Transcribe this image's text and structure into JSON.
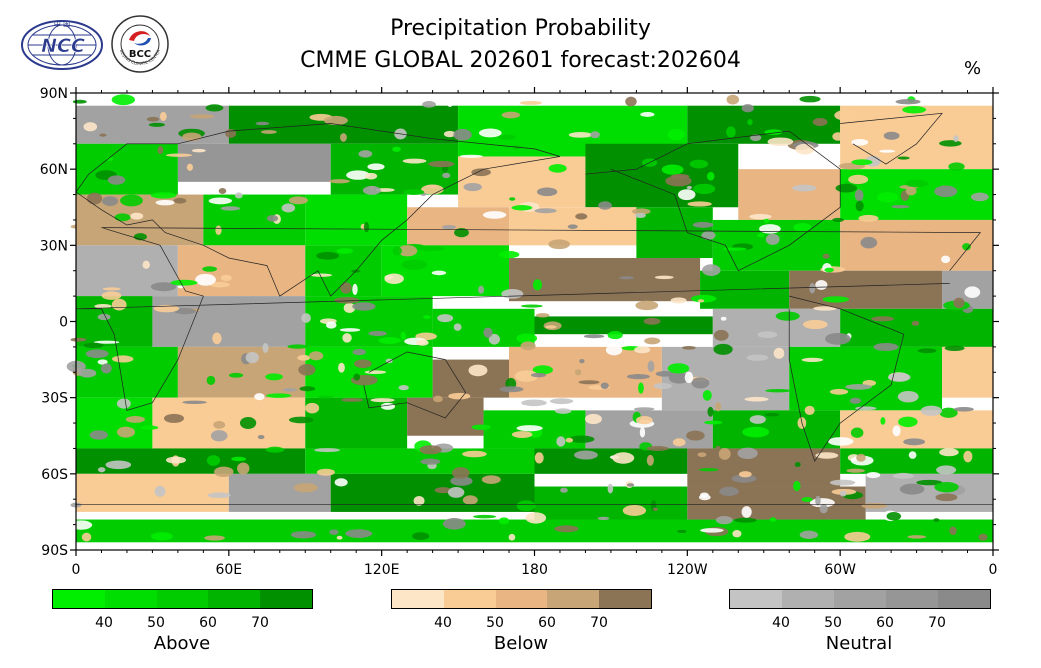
{
  "header": {
    "title_line1": "Precipitation Probability",
    "title_line2": "CMME GLOBAL 202601 forecast:202604",
    "unit": "%"
  },
  "logos": {
    "ncc": {
      "text": "NCC",
      "top_text": "中 国"
    },
    "bcc": {
      "text": "BCC",
      "ring_text": "BEIJING CLIMATE CENTER"
    }
  },
  "map": {
    "lat_labels": [
      "90N",
      "60N",
      "30N",
      "0",
      "30S",
      "60S",
      "90S"
    ],
    "lon_labels": [
      "0",
      "60E",
      "120E",
      "180",
      "120W",
      "60W",
      "0"
    ]
  },
  "legend": {
    "above": {
      "name": "Above",
      "ticks": [
        "40",
        "50",
        "60",
        "70"
      ],
      "colors": [
        "#00ee00",
        "#00dd00",
        "#00cc00",
        "#00b400",
        "#009000"
      ]
    },
    "below": {
      "name": "Below",
      "ticks": [
        "40",
        "50",
        "60",
        "70"
      ],
      "colors": [
        "#fde6c8",
        "#f9cc96",
        "#e8b583",
        "#c8a576",
        "#8b7355"
      ]
    },
    "neutral": {
      "name": "Neutral",
      "ticks": [
        "40",
        "50",
        "60",
        "70"
      ],
      "colors": [
        "#c4c4c4",
        "#b0b0b0",
        "#a2a2a2",
        "#969696",
        "#8a8a8a"
      ]
    }
  }
}
